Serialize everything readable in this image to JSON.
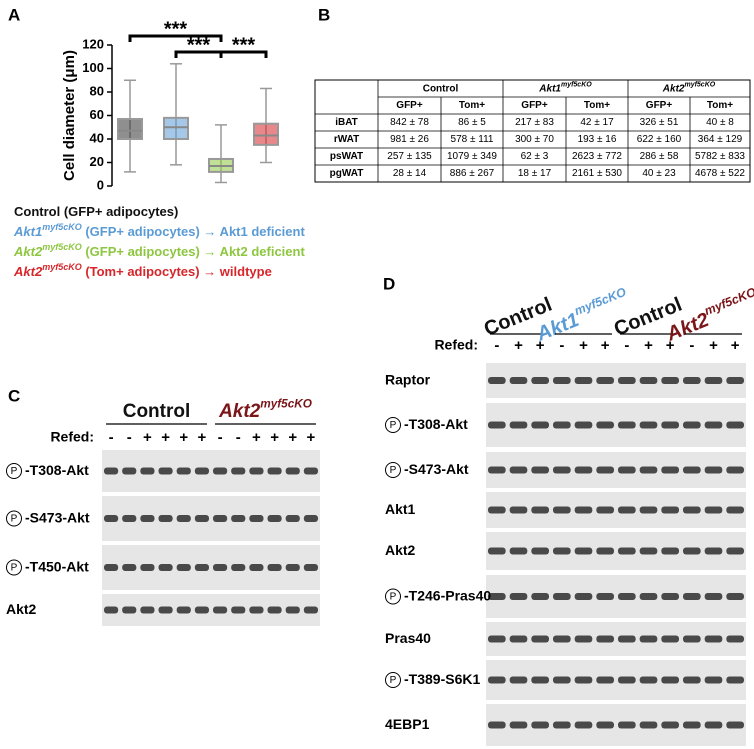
{
  "chart_data": {
    "type": "box",
    "panel_label": "A",
    "ylabel": "Cell diameter (μm)",
    "ylim": [
      0,
      120
    ],
    "yticks": [
      0,
      20,
      40,
      60,
      80,
      100,
      120
    ],
    "series": [
      {
        "color": "#333333",
        "min": 12,
        "q1": 40,
        "median": 47,
        "q3": 57,
        "max": 90
      },
      {
        "color": "#5b9bd5",
        "min": 18,
        "q1": 40,
        "median": 50,
        "q3": 58,
        "max": 104
      },
      {
        "color": "#8dc63f",
        "min": 3,
        "q1": 12,
        "median": 17,
        "q3": 23,
        "max": 52
      },
      {
        "color": "#d7262b",
        "min": 20,
        "q1": 35,
        "median": 43,
        "q3": 53,
        "max": 83
      }
    ],
    "significance": [
      "***",
      "***",
      "***"
    ]
  },
  "legend": [
    {
      "text": "Control (GFP+ adipocytes)",
      "color": "#111111"
    },
    {
      "gene": "Akt1",
      "sup": "myf5cKO",
      "text": " (GFP+ adipocytes) → Akt1 deficient",
      "color": "#5b9bd5"
    },
    {
      "gene": "Akt2",
      "sup": "myf5cKO",
      "text": " (GFP+ adipocytes) → Akt2 deficient",
      "color": "#8dc63f"
    },
    {
      "gene": "Akt2",
      "sup": "myf5cKO",
      "text": " (Tom+ adipocytes) → wildtype",
      "color": "#d7262b"
    }
  ],
  "table": {
    "panel_label": "B",
    "groups": [
      {
        "name": "Control"
      },
      {
        "name": "Akt1",
        "sup": "myf5cKO"
      },
      {
        "name": "Akt2",
        "sup": "myf5cKO"
      }
    ],
    "subheaders": [
      "GFP+",
      "Tom+",
      "GFP+",
      "Tom+",
      "GFP+",
      "Tom+"
    ],
    "rows": [
      [
        "iBAT",
        "842 ± 78",
        "86 ± 5",
        "217 ± 83",
        "42 ± 17",
        "326 ± 51",
        "40 ± 8"
      ],
      [
        "rWAT",
        "981 ± 26",
        "578 ± 111",
        "300 ± 70",
        "193 ± 16",
        "622 ± 160",
        "364 ± 129"
      ],
      [
        "psWAT",
        "257 ± 135",
        "1079 ± 349",
        "62 ± 3",
        "2623 ± 772",
        "286 ± 58",
        "5782 ± 833"
      ],
      [
        "pgWAT",
        "28 ± 14",
        "886 ± 267",
        "18 ± 17",
        "2161 ± 530",
        "40 ± 23",
        "4678 ± 522"
      ]
    ]
  },
  "phospho_symbol": "P",
  "blot_c": {
    "panel_label": "C",
    "groups": [
      {
        "name": "Control",
        "color": "#111111"
      },
      {
        "name": "Akt2",
        "sup": "myf5cKO",
        "color": "#7a1518"
      }
    ],
    "refed_label": "Refed:",
    "lanes": [
      "-",
      "-",
      "+",
      "+",
      "+",
      "+",
      "-",
      "-",
      "+",
      "+",
      "+",
      "+"
    ],
    "rows": [
      {
        "phospho": true,
        "text": "-T308-Akt"
      },
      {
        "phospho": true,
        "text": "-S473-Akt"
      },
      {
        "phospho": true,
        "text": "-T450-Akt"
      },
      {
        "phospho": false,
        "text": "Akt2"
      }
    ]
  },
  "blot_d": {
    "panel_label": "D",
    "groups": [
      {
        "name": "Control",
        "color": "#111111"
      },
      {
        "name": "Akt1",
        "sup": "myf5cKO",
        "color": "#5b9bd5"
      },
      {
        "name": "Control",
        "color": "#111111"
      },
      {
        "name": "Akt2",
        "sup": "myf5cKO",
        "color": "#7a1518"
      }
    ],
    "refed_label": "Refed:",
    "lanes": [
      "-",
      "+",
      "+",
      "-",
      "+",
      "+",
      "-",
      "+",
      "+",
      "-",
      "+",
      "+"
    ],
    "rows": [
      {
        "phospho": false,
        "text": "Raptor"
      },
      {
        "phospho": true,
        "text": "-T308-Akt"
      },
      {
        "phospho": true,
        "text": "-S473-Akt"
      },
      {
        "phospho": false,
        "text": "Akt1"
      },
      {
        "phospho": false,
        "text": "Akt2"
      },
      {
        "phospho": true,
        "text": "-T246-Pras40"
      },
      {
        "phospho": false,
        "text": "Pras40"
      },
      {
        "phospho": true,
        "text": "-T389-S6K1"
      },
      {
        "phospho": false,
        "text": "4EBP1"
      }
    ]
  }
}
